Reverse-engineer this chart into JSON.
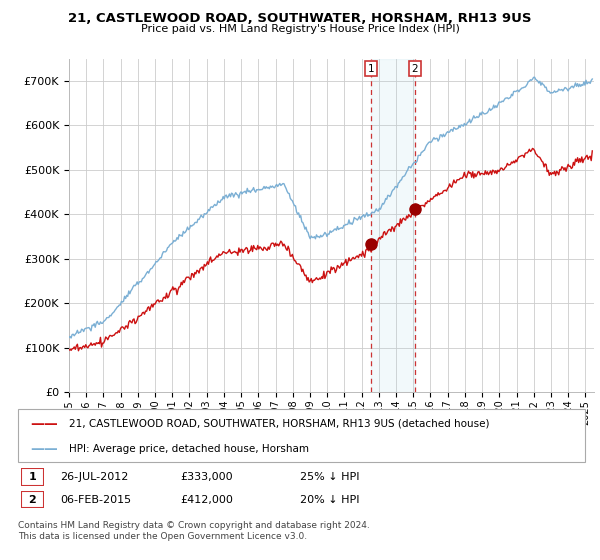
{
  "title": "21, CASTLEWOOD ROAD, SOUTHWATER, HORSHAM, RH13 9US",
  "subtitle": "Price paid vs. HM Land Registry's House Price Index (HPI)",
  "legend_line1": "21, CASTLEWOOD ROAD, SOUTHWATER, HORSHAM, RH13 9US (detached house)",
  "legend_line2": "HPI: Average price, detached house, Horsham",
  "sale1_date": "26-JUL-2012",
  "sale1_price": "£333,000",
  "sale1_note": "25% ↓ HPI",
  "sale1_year": 2012.56,
  "sale1_value": 333000,
  "sale2_date": "06-FEB-2015",
  "sale2_price": "£412,000",
  "sale2_note": "20% ↓ HPI",
  "sale2_year": 2015.1,
  "sale2_value": 412000,
  "footnote1": "Contains HM Land Registry data © Crown copyright and database right 2024.",
  "footnote2": "This data is licensed under the Open Government Licence v3.0.",
  "hpi_color": "#7bafd4",
  "property_color": "#cc1111",
  "sale_dot_color": "#990000",
  "background_color": "#ffffff",
  "plot_bg_color": "#ffffff",
  "grid_color": "#cccccc",
  "ylim": [
    0,
    750000
  ],
  "xlim_start": 1995,
  "xlim_end": 2025.5
}
